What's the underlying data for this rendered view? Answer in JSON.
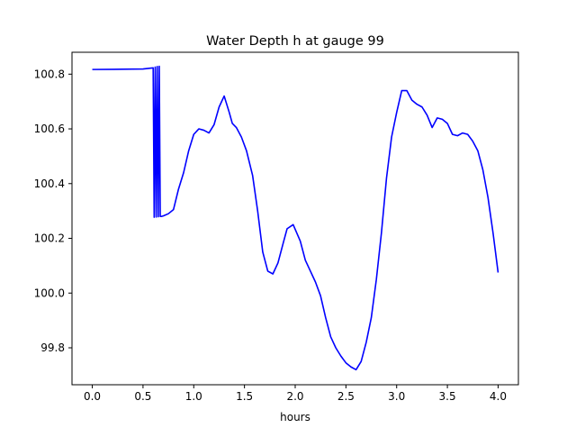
{
  "chart_data": {
    "type": "line",
    "title": "Water Depth h at gauge 99",
    "xlabel": "hours",
    "ylabel": "",
    "xlim": [
      -0.2,
      4.2
    ],
    "ylim": [
      99.665,
      100.88
    ],
    "x_ticks": [
      0.0,
      0.5,
      1.0,
      1.5,
      2.0,
      2.5,
      3.0,
      3.5,
      4.0
    ],
    "x_tick_labels": [
      "0.0",
      "0.5",
      "1.0",
      "1.5",
      "2.0",
      "2.5",
      "3.0",
      "3.5",
      "4.0"
    ],
    "y_ticks": [
      99.8,
      100.0,
      100.2,
      100.4,
      100.6,
      100.8
    ],
    "y_tick_labels": [
      "99.8",
      "100.0",
      "100.2",
      "100.4",
      "100.6",
      "100.8"
    ],
    "grid": false,
    "series": [
      {
        "color": "#0000ff",
        "x": [
          0.0,
          0.3,
          0.5,
          0.6,
          0.61,
          0.62,
          0.63,
          0.64,
          0.65,
          0.66,
          0.67,
          0.68,
          0.7,
          0.75,
          0.8,
          0.85,
          0.9,
          0.95,
          1.0,
          1.05,
          1.1,
          1.15,
          1.2,
          1.25,
          1.3,
          1.35,
          1.38,
          1.42,
          1.47,
          1.52,
          1.58,
          1.63,
          1.68,
          1.73,
          1.78,
          1.83,
          1.88,
          1.92,
          1.98,
          2.05,
          2.1,
          2.15,
          2.2,
          2.25,
          2.3,
          2.35,
          2.4,
          2.45,
          2.5,
          2.55,
          2.6,
          2.65,
          2.7,
          2.75,
          2.8,
          2.85,
          2.9,
          2.95,
          3.0,
          3.05,
          3.1,
          3.15,
          3.2,
          3.25,
          3.3,
          3.35,
          3.4,
          3.45,
          3.5,
          3.55,
          3.6,
          3.65,
          3.7,
          3.75,
          3.8,
          3.85,
          3.9,
          3.95,
          4.0
        ],
        "y": [
          100.817,
          100.818,
          100.819,
          100.823,
          100.277,
          100.826,
          100.278,
          100.828,
          100.279,
          100.829,
          100.28,
          100.28,
          100.282,
          100.29,
          100.305,
          100.38,
          100.44,
          100.52,
          100.58,
          100.6,
          100.595,
          100.585,
          100.615,
          100.68,
          100.72,
          100.66,
          100.62,
          100.605,
          100.57,
          100.52,
          100.43,
          100.3,
          100.15,
          100.08,
          100.07,
          100.11,
          100.18,
          100.235,
          100.25,
          100.19,
          100.12,
          100.08,
          100.04,
          99.99,
          99.91,
          99.84,
          99.8,
          99.77,
          99.745,
          99.73,
          99.72,
          99.75,
          99.82,
          99.91,
          100.05,
          100.22,
          100.42,
          100.57,
          100.66,
          100.74,
          100.74,
          100.705,
          100.69,
          100.68,
          100.65,
          100.605,
          100.64,
          100.635,
          100.62,
          100.58,
          100.575,
          100.585,
          100.58,
          100.555,
          100.52,
          100.45,
          100.35,
          100.22,
          100.075
        ]
      }
    ]
  }
}
